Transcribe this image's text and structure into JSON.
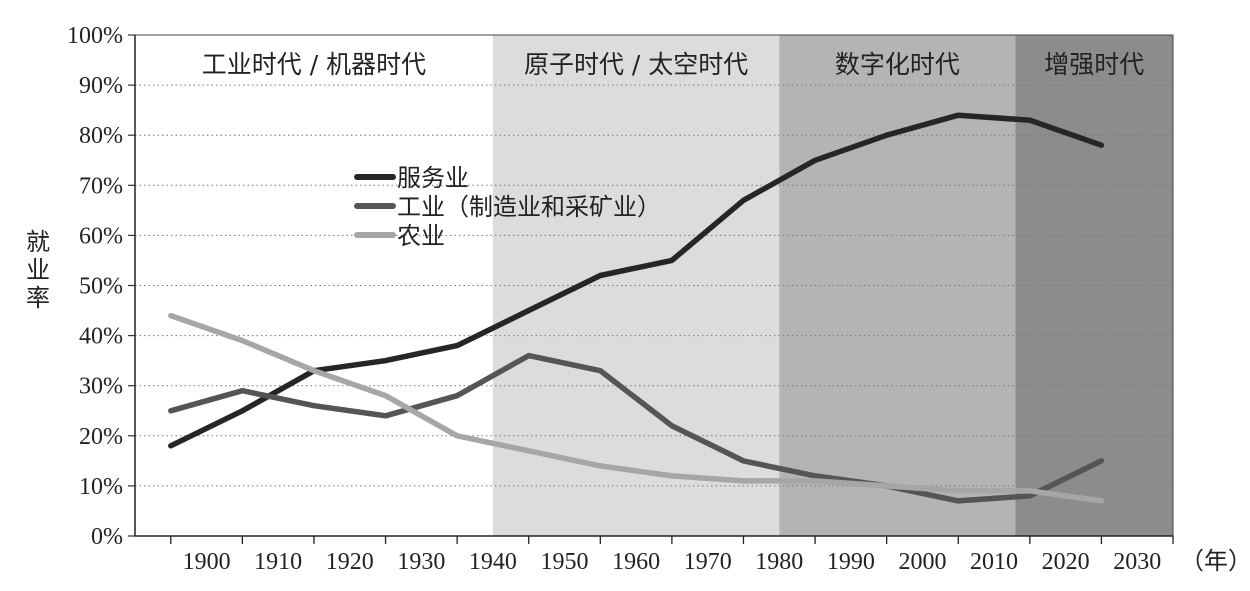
{
  "chart_data": {
    "type": "line",
    "ylabel": "就业率",
    "xunit": "（年）",
    "x": [
      1900,
      1910,
      1920,
      1930,
      1940,
      1950,
      1960,
      1970,
      1980,
      1990,
      2000,
      2010,
      2020,
      2030
    ],
    "ylim": [
      0,
      100
    ],
    "yticks": [
      "0%",
      "10%",
      "20%",
      "30%",
      "40%",
      "50%",
      "60%",
      "70%",
      "80%",
      "90%",
      "100%"
    ],
    "grid": true,
    "legend_placement": "upper-left-center",
    "eras": [
      {
        "label": "工业时代 / 机器时代",
        "from": 1900,
        "to": 1940,
        "color": "#ffffff"
      },
      {
        "label": "原子时代 / 太空时代",
        "from": 1940,
        "to": 1980,
        "color": "#dcdcdc"
      },
      {
        "label": "数字化时代",
        "from": 1980,
        "to": 2013,
        "color": "#b4b4b4"
      },
      {
        "label": "增强时代",
        "from": 2013,
        "to": 2030,
        "color": "#8c8c8c"
      }
    ],
    "series": [
      {
        "name": "服务业",
        "color": "#262626",
        "points": [
          [
            1895,
            18
          ],
          [
            1905,
            25
          ],
          [
            1915,
            33
          ],
          [
            1925,
            35
          ],
          [
            1935,
            38
          ],
          [
            1945,
            45
          ],
          [
            1955,
            52
          ],
          [
            1965,
            55
          ],
          [
            1975,
            67
          ],
          [
            1985,
            75
          ],
          [
            1995,
            80
          ],
          [
            2005,
            84
          ],
          [
            2015,
            83
          ],
          [
            2025,
            78
          ]
        ]
      },
      {
        "name": "工业（制造业和采矿业）",
        "color": "#555555",
        "points": [
          [
            1895,
            25
          ],
          [
            1905,
            29
          ],
          [
            1915,
            26
          ],
          [
            1925,
            24
          ],
          [
            1935,
            28
          ],
          [
            1945,
            36
          ],
          [
            1955,
            33
          ],
          [
            1965,
            22
          ],
          [
            1975,
            15
          ],
          [
            1985,
            12
          ],
          [
            1995,
            10
          ],
          [
            2005,
            7
          ],
          [
            2015,
            8
          ],
          [
            2025,
            15
          ]
        ]
      },
      {
        "name": "农业",
        "color": "#a6a6a6",
        "points": [
          [
            1895,
            44
          ],
          [
            1905,
            39
          ],
          [
            1915,
            33
          ],
          [
            1925,
            28
          ],
          [
            1935,
            20
          ],
          [
            1945,
            17
          ],
          [
            1955,
            14
          ],
          [
            1965,
            12
          ],
          [
            1975,
            11
          ],
          [
            1985,
            11
          ],
          [
            1995,
            10
          ],
          [
            2005,
            9
          ],
          [
            2015,
            9
          ],
          [
            2025,
            7
          ]
        ]
      }
    ]
  }
}
